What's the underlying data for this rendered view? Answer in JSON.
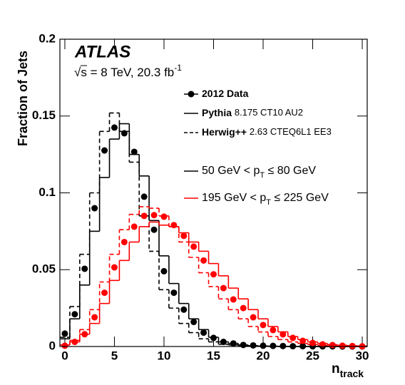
{
  "chart_data": {
    "type": "histogram-comparison",
    "experiment": "ATLAS",
    "energy_label": {
      "text": "s = 8 TeV, 20.3 fb",
      "root": "√",
      "sup": "-1"
    },
    "x_label": {
      "main": "n",
      "sub": "track"
    },
    "y_label": "Fraction of Jets",
    "xlim": [
      -0.5,
      30.5
    ],
    "ylim": [
      0,
      0.2
    ],
    "xticks": [
      0,
      5,
      10,
      15,
      20,
      25,
      30
    ],
    "yticks": [
      0,
      0.05,
      0.1,
      0.15,
      0.2
    ],
    "legend": {
      "styles": [
        {
          "bold": "2012 Data",
          "style": "points"
        },
        {
          "bold": "Pythia",
          "text": "8.175 CT10 AU2",
          "style": "solid"
        },
        {
          "bold": "Herwig++",
          "text": "2.63 CTEQ6L1 EE3",
          "style": "dashed"
        }
      ],
      "colors": [
        {
          "before": "50 GeV < p",
          "sub": "T",
          "after": " ≤ 80 GeV",
          "color": "#000000"
        },
        {
          "before": "195 GeV < p",
          "sub": "T",
          "after": " ≤ 225 GeV",
          "color": "#ff0000"
        }
      ]
    },
    "x": [
      0,
      1,
      2,
      3,
      4,
      5,
      6,
      7,
      8,
      9,
      10,
      11,
      12,
      13,
      14,
      15,
      16,
      17,
      18,
      19,
      20,
      21,
      22,
      23,
      24,
      25,
      26,
      27,
      28,
      29,
      30
    ],
    "series": [
      {
        "style": "solid",
        "color": "#000000",
        "values": [
          0.005,
          0.018,
          0.04,
          0.075,
          0.11,
          0.135,
          0.145,
          0.125,
          0.111,
          0.082,
          0.059,
          0.041,
          0.028,
          0.018,
          0.011,
          0.006,
          0.003,
          0.002,
          0.001,
          0.0005,
          0.0003,
          0.0002,
          0.0001,
          0.0001,
          0,
          0,
          0,
          0,
          0,
          0,
          0
        ]
      },
      {
        "style": "dashed",
        "color": "#000000",
        "values": [
          0.006,
          0.026,
          0.06,
          0.1,
          0.14,
          0.152,
          0.14,
          0.12,
          0.085,
          0.062,
          0.037,
          0.025,
          0.015,
          0.009,
          0.005,
          0.003,
          0.0015,
          0.001,
          0.0005,
          0.0003,
          0.0002,
          0.0001,
          0,
          0,
          0,
          0,
          0,
          0,
          0,
          0,
          0
        ]
      },
      {
        "style": "solid",
        "color": "#ff0000",
        "values": [
          0.001,
          0.003,
          0.008,
          0.015,
          0.028,
          0.043,
          0.056,
          0.068,
          0.078,
          0.081,
          0.079,
          0.078,
          0.074,
          0.068,
          0.062,
          0.054,
          0.046,
          0.038,
          0.031,
          0.024,
          0.018,
          0.013,
          0.0095,
          0.0065,
          0.0045,
          0.003,
          0.002,
          0.0012,
          0.0008,
          0.0005,
          0.0003
        ]
      },
      {
        "style": "dashed",
        "color": "#ff0000",
        "values": [
          0.001,
          0.004,
          0.011,
          0.024,
          0.042,
          0.06,
          0.076,
          0.086,
          0.091,
          0.09,
          0.085,
          0.078,
          0.068,
          0.058,
          0.048,
          0.039,
          0.031,
          0.024,
          0.018,
          0.013,
          0.0095,
          0.0065,
          0.0045,
          0.003,
          0.002,
          0.0013,
          0.0008,
          0.0005,
          0.0003,
          0.0002,
          0.0001
        ]
      },
      {
        "style": "points",
        "color": "#000000",
        "values": [
          0.0084,
          0.021,
          0.0506,
          0.09,
          0.1276,
          0.1425,
          0.1388,
          0.1267,
          0.0975,
          0.076,
          0.049,
          0.035,
          0.024,
          0.016,
          0.009,
          0.0056,
          0.003,
          0.002,
          0.001,
          0.0007,
          0.0005,
          0.0004,
          0.0003,
          0.0002,
          0.0002,
          0.0001,
          0.0001,
          0.0001,
          0,
          0,
          0
        ]
      },
      {
        "style": "points",
        "color": "#ff0000",
        "values": [
          0.0005,
          0.003,
          0.008,
          0.019,
          0.035,
          0.0515,
          0.068,
          0.078,
          0.085,
          0.0855,
          0.0845,
          0.079,
          0.072,
          0.065,
          0.056,
          0.047,
          0.038,
          0.0306,
          0.025,
          0.019,
          0.014,
          0.0107,
          0.0079,
          0.0056,
          0.0037,
          0.0023,
          0.0014,
          0.0009,
          0.0005,
          0.0003,
          0.0001
        ]
      }
    ]
  }
}
